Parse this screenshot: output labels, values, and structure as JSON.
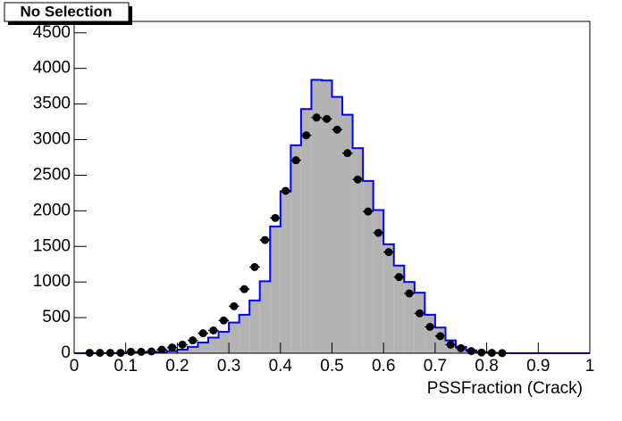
{
  "chart_data": {
    "type": "histogram",
    "title": "No Selection",
    "x_label": "PSSFraction (Crack)",
    "bins": [
      0,
      0.02,
      0.04,
      0.06,
      0.08,
      0.1,
      0.12,
      0.14,
      0.16,
      0.18,
      0.2,
      0.22,
      0.24,
      0.26,
      0.28,
      0.3,
      0.32,
      0.34,
      0.36,
      0.38,
      0.4,
      0.42,
      0.44,
      0.46,
      0.48,
      0.5,
      0.52,
      0.54,
      0.56,
      0.58,
      0.6,
      0.62,
      0.64,
      0.66,
      0.68,
      0.7,
      0.72,
      0.74,
      0.76,
      0.78,
      0.8,
      0.82,
      0.84,
      0.86,
      0.88,
      0.9,
      0.92,
      0.94,
      0.96,
      0.98,
      1
    ],
    "values": [
      0,
      0,
      0,
      0,
      0,
      5,
      5,
      10,
      15,
      30,
      50,
      90,
      150,
      220,
      300,
      430,
      540,
      740,
      1010,
      1780,
      2270,
      2920,
      3430,
      3840,
      3830,
      3600,
      3350,
      2880,
      2420,
      2010,
      1530,
      1230,
      1000,
      850,
      540,
      360,
      180,
      90,
      40,
      15,
      5,
      0,
      0,
      0,
      0,
      0,
      0,
      0,
      0,
      0
    ],
    "color": "#b3b3b3",
    "line_color": "#0000ff",
    "points": {
      "color": "#000000",
      "x": [
        0.03,
        0.05,
        0.07,
        0.09,
        0.11,
        0.13,
        0.15,
        0.17,
        0.19,
        0.21,
        0.23,
        0.25,
        0.27,
        0.29,
        0.31,
        0.33,
        0.35,
        0.37,
        0.39,
        0.41,
        0.43,
        0.45,
        0.47,
        0.49,
        0.51,
        0.53,
        0.55,
        0.57,
        0.59,
        0.61,
        0.63,
        0.65,
        0.67,
        0.69,
        0.71,
        0.73,
        0.75,
        0.77,
        0.79,
        0.81,
        0.83
      ],
      "values": [
        5,
        5,
        5,
        5,
        20,
        20,
        25,
        50,
        80,
        120,
        180,
        280,
        320,
        460,
        660,
        900,
        1210,
        1590,
        1900,
        2280,
        2710,
        3060,
        3310,
        3290,
        3140,
        2810,
        2440,
        1990,
        1690,
        1420,
        1070,
        840,
        560,
        370,
        240,
        120,
        70,
        30,
        10,
        5,
        2
      ]
    },
    "xlim": [
      0,
      1
    ],
    "xticks": [
      0,
      0.1,
      0.2,
      0.3,
      0.4,
      0.5,
      0.6,
      0.7,
      0.8,
      0.9,
      1
    ],
    "ylim": [
      0,
      4660
    ],
    "yticks": [
      0,
      500,
      1000,
      1500,
      2000,
      2500,
      3000,
      3500,
      4000,
      4500
    ]
  }
}
